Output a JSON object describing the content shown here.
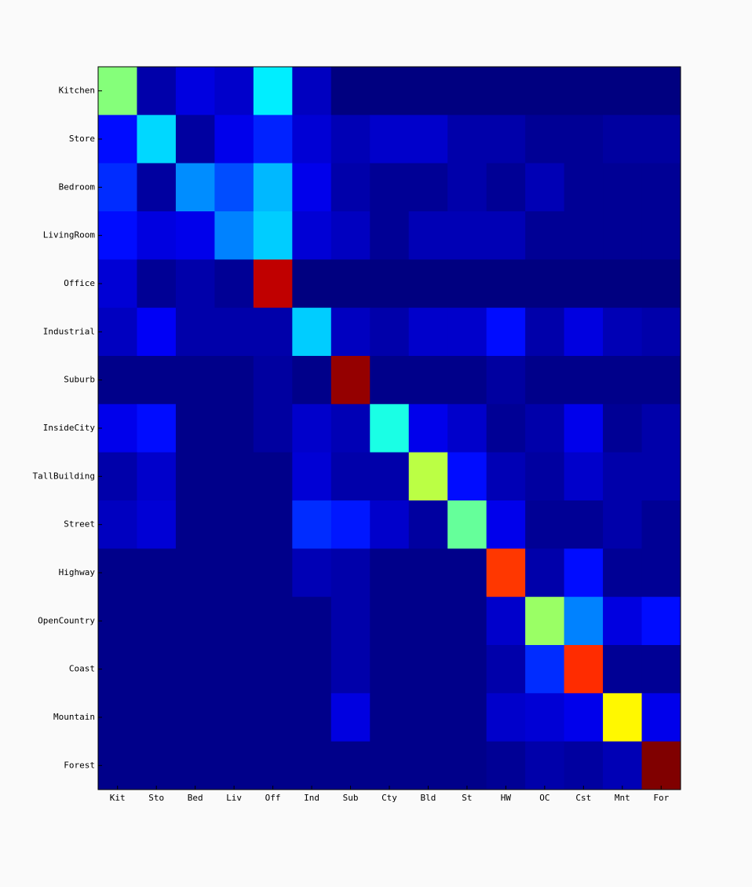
{
  "chart_data": {
    "type": "heatmap",
    "colormap": "jet",
    "x_categories": [
      "Kit",
      "Sto",
      "Bed",
      "Liv",
      "Off",
      "Ind",
      "Sub",
      "Cty",
      "Bld",
      "St",
      "HW",
      "OC",
      "Cst",
      "Mnt",
      "For"
    ],
    "y_categories": [
      "Kitchen",
      "Store",
      "Bedroom",
      "LivingRoom",
      "Office",
      "Industrial",
      "Suburb",
      "InsideCity",
      "TallBuilding",
      "Street",
      "Highway",
      "OpenCountry",
      "Coast",
      "Mountain",
      "Forest"
    ],
    "values": [
      [
        0.48,
        0.04,
        0.09,
        0.07,
        0.34,
        0.06,
        0,
        0,
        0,
        0,
        0,
        0,
        0,
        0,
        0
      ],
      [
        0.13,
        0.32,
        0.03,
        0.1,
        0.15,
        0.08,
        0.05,
        0.07,
        0.07,
        0.04,
        0.04,
        0.02,
        0.02,
        0.03,
        0.03
      ],
      [
        0.16,
        0.03,
        0.25,
        0.19,
        0.29,
        0.1,
        0.04,
        0.02,
        0.02,
        0.04,
        0.02,
        0.05,
        0.02,
        0.02,
        0.02
      ],
      [
        0.13,
        0.09,
        0.1,
        0.24,
        0.31,
        0.08,
        0.06,
        0.02,
        0.05,
        0.05,
        0.05,
        0.02,
        0.02,
        0.02,
        0.02
      ],
      [
        0.08,
        0.02,
        0.04,
        0.02,
        0.89,
        0,
        0,
        0,
        0,
        0,
        0,
        0,
        0,
        0,
        0
      ],
      [
        0.06,
        0.11,
        0.04,
        0.04,
        0.04,
        0.31,
        0.06,
        0.04,
        0.07,
        0.07,
        0.13,
        0.04,
        0.09,
        0.05,
        0.04
      ],
      [
        0.01,
        0.01,
        0.01,
        0.01,
        0.03,
        0.01,
        0.93,
        0.01,
        0.01,
        0.01,
        0.03,
        0.01,
        0.01,
        0.01,
        0.01
      ],
      [
        0.1,
        0.13,
        0.01,
        0.01,
        0.03,
        0.07,
        0.05,
        0.38,
        0.1,
        0.07,
        0.02,
        0.04,
        0.1,
        0.02,
        0.04
      ],
      [
        0.04,
        0.07,
        0.01,
        0.01,
        0.01,
        0.08,
        0.04,
        0.04,
        0.53,
        0.13,
        0.05,
        0.03,
        0.07,
        0.04,
        0.04
      ],
      [
        0.06,
        0.08,
        0.01,
        0.01,
        0.01,
        0.16,
        0.14,
        0.07,
        0.03,
        0.45,
        0.1,
        0.02,
        0.02,
        0.04,
        0.02
      ],
      [
        0.01,
        0.01,
        0.01,
        0.01,
        0.01,
        0.05,
        0.04,
        0.01,
        0.01,
        0.01,
        0.78,
        0.04,
        0.13,
        0.02,
        0.02
      ],
      [
        0.01,
        0.01,
        0.01,
        0.01,
        0.01,
        0.01,
        0.04,
        0.01,
        0.01,
        0.01,
        0.07,
        0.5,
        0.24,
        0.09,
        0.13
      ],
      [
        0.01,
        0.01,
        0.01,
        0.01,
        0.01,
        0.01,
        0.04,
        0.01,
        0.01,
        0.01,
        0.04,
        0.16,
        0.79,
        0.02,
        0.02
      ],
      [
        0.01,
        0.01,
        0.01,
        0.01,
        0.01,
        0.01,
        0.09,
        0.01,
        0.01,
        0.01,
        0.07,
        0.08,
        0.1,
        0.6,
        0.1
      ],
      [
        0.01,
        0.01,
        0.01,
        0.01,
        0.01,
        0.01,
        0.01,
        0.01,
        0.01,
        0.01,
        0.02,
        0.04,
        0.03,
        0.05,
        0.95
      ]
    ]
  }
}
